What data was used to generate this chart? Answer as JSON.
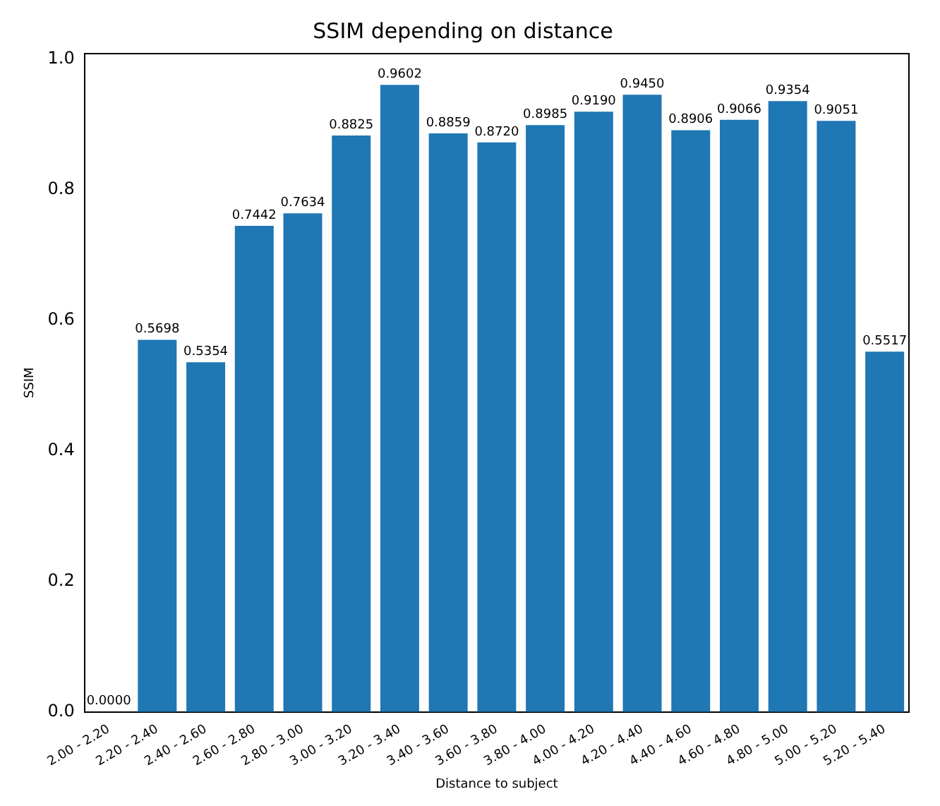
{
  "chart_data": {
    "type": "bar",
    "title": "SSIM depending on distance",
    "xlabel": "Distance to subject",
    "ylabel": "SSIM",
    "categories": [
      "2.00 - 2.20",
      "2.20 - 2.40",
      "2.40 - 2.60",
      "2.60 - 2.80",
      "2.80 - 3.00",
      "3.00 - 3.20",
      "3.20 - 3.40",
      "3.40 - 3.60",
      "3.60 - 3.80",
      "3.80 - 4.00",
      "4.00 - 4.20",
      "4.20 - 4.40",
      "4.40 - 4.60",
      "4.60 - 4.80",
      "4.80 - 5.00",
      "5.00 - 5.20",
      "5.20 - 5.40"
    ],
    "values": [
      0.0,
      0.5698,
      0.5354,
      0.7442,
      0.7634,
      0.8825,
      0.9602,
      0.8859,
      0.872,
      0.8985,
      0.919,
      0.945,
      0.8906,
      0.9066,
      0.9354,
      0.9051,
      0.5517
    ],
    "value_labels": [
      "0.0000",
      "0.5698",
      "0.5354",
      "0.7442",
      "0.7634",
      "0.8825",
      "0.9602",
      "0.8859",
      "0.8720",
      "0.8985",
      "0.9190",
      "0.9450",
      "0.8906",
      "0.9066",
      "0.9354",
      "0.9051",
      "0.5517"
    ],
    "color": "#1f77b4",
    "ylim": [
      0,
      1.008
    ],
    "yticks": [
      {
        "value": 0,
        "label": "0.0"
      },
      {
        "value": 0.2,
        "label": "0.2"
      },
      {
        "value": 0.4,
        "label": "0.4"
      },
      {
        "value": 0.6,
        "label": "0.6"
      },
      {
        "value": 0.8,
        "label": "0.8"
      },
      {
        "value": 1,
        "label": "1.0"
      }
    ],
    "grid": false,
    "legend": false
  }
}
